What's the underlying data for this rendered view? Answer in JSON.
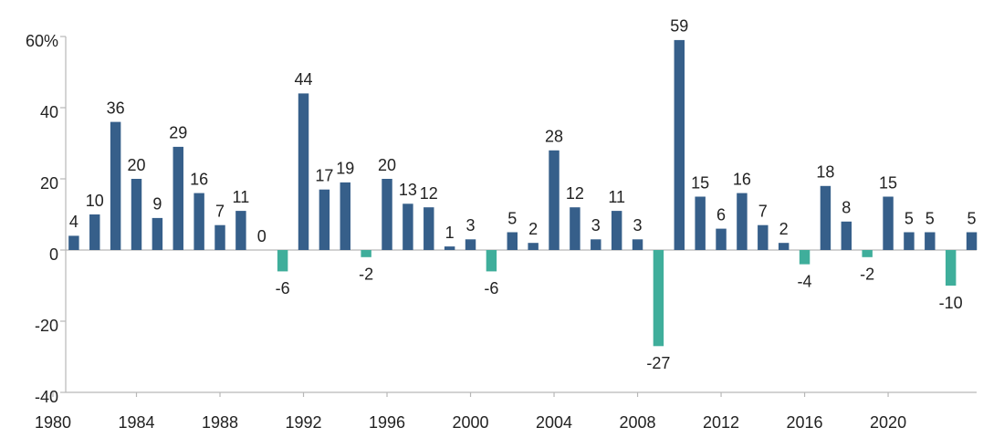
{
  "chart_data": {
    "type": "bar",
    "x": [
      1981,
      1982,
      1983,
      1984,
      1985,
      1986,
      1987,
      1988,
      1989,
      1990,
      1991,
      1992,
      1993,
      1994,
      1995,
      1996,
      1997,
      1998,
      1999,
      2000,
      2001,
      2002,
      2003,
      2004,
      2005,
      2006,
      2007,
      2008,
      2009,
      2010,
      2011,
      2012,
      2013,
      2014,
      2015,
      2016,
      2017,
      2018,
      2019,
      2020,
      2021,
      2022,
      2023,
      2024
    ],
    "values": [
      4,
      10,
      36,
      20,
      9,
      29,
      16,
      7,
      11,
      0,
      -6,
      44,
      17,
      19,
      -2,
      20,
      13,
      12,
      1,
      3,
      -6,
      5,
      2,
      28,
      12,
      3,
      11,
      3,
      -27,
      59,
      15,
      6,
      16,
      7,
      2,
      -4,
      18,
      8,
      -2,
      15,
      5,
      5,
      -10,
      5
    ],
    "color": "#365f8a",
    "negative_color": "#3fae9b",
    "xlim": [
      1980,
      2024.5
    ],
    "xticks": [
      1980,
      1984,
      1988,
      1992,
      1996,
      2000,
      2004,
      2008,
      2012,
      2016,
      2020
    ],
    "ylim": [
      -40,
      60
    ],
    "yticks": [
      -40,
      -20,
      0,
      20,
      40,
      {
        "value": 60,
        "label": "60%"
      }
    ]
  }
}
